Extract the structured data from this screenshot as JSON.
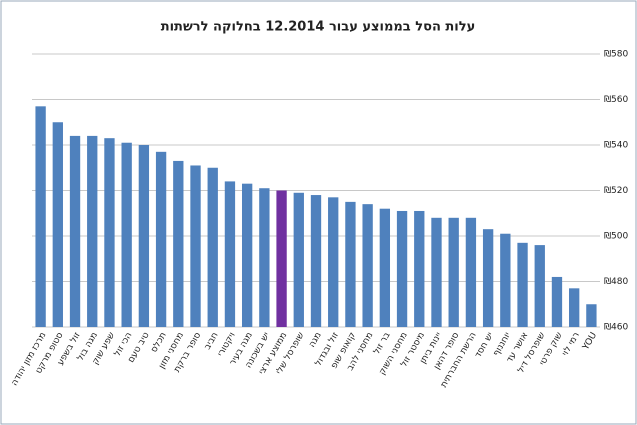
{
  "chart_data": {
    "type": "bar",
    "title": "עלות הסל בממוצע עבור 12.2014 בחלוקה לרשתות",
    "categories": [
      "מרכז מזון יהודה",
      "סטופ מרקט",
      "זול בשפע",
      "מגה בול",
      "שפע שוק",
      "הכי זול",
      "טיב טעם",
      "תכלס",
      "מחסני מזון",
      "סופר ברקת",
      "חביב",
      "ויקטורי",
      "מגה בעיר",
      "יש בשכונה",
      "ממוצע ארצי",
      "שופרסל שלי",
      "מגה",
      "זול ובגדול",
      "קואופ שופ",
      "מחסני להב",
      "בר זול",
      "מחסני השוק",
      "מיסטר זול",
      "יינות ביתן",
      "סופר דהאן",
      "הרשת החברתית",
      "יש חסד",
      "יוחננוף",
      "אושר עד",
      "שופרסל דיל",
      "שוק פרטי",
      "רמי לוי",
      "YOU"
    ],
    "values": [
      557,
      550,
      544,
      544,
      543,
      541,
      540,
      537,
      533,
      531,
      530,
      524,
      523,
      521,
      520,
      519,
      518,
      517,
      515,
      514,
      512,
      511,
      511,
      508,
      508,
      508,
      503,
      501,
      497,
      496,
      482,
      477,
      470
    ],
    "colors": [
      "#4f81bd",
      "#4f81bd",
      "#4f81bd",
      "#4f81bd",
      "#4f81bd",
      "#4f81bd",
      "#4f81bd",
      "#4f81bd",
      "#4f81bd",
      "#4f81bd",
      "#4f81bd",
      "#4f81bd",
      "#4f81bd",
      "#4f81bd",
      "#7030a0",
      "#4f81bd",
      "#4f81bd",
      "#4f81bd",
      "#4f81bd",
      "#4f81bd",
      "#4f81bd",
      "#4f81bd",
      "#4f81bd",
      "#4f81bd",
      "#4f81bd",
      "#4f81bd",
      "#4f81bd",
      "#4f81bd",
      "#4f81bd",
      "#4f81bd",
      "#4f81bd",
      "#4f81bd",
      "#4f81bd"
    ],
    "ylim": [
      460,
      580
    ],
    "yticks": [
      {
        "value": 460,
        "label": "₪460"
      },
      {
        "value": 480,
        "label": "₪480"
      },
      {
        "value": 500,
        "label": "₪500"
      },
      {
        "value": 520,
        "label": "₪520"
      },
      {
        "value": 540,
        "label": "₪540"
      },
      {
        "value": 560,
        "label": "₪560"
      },
      {
        "value": 580,
        "label": "₪580"
      }
    ],
    "grid": true
  }
}
